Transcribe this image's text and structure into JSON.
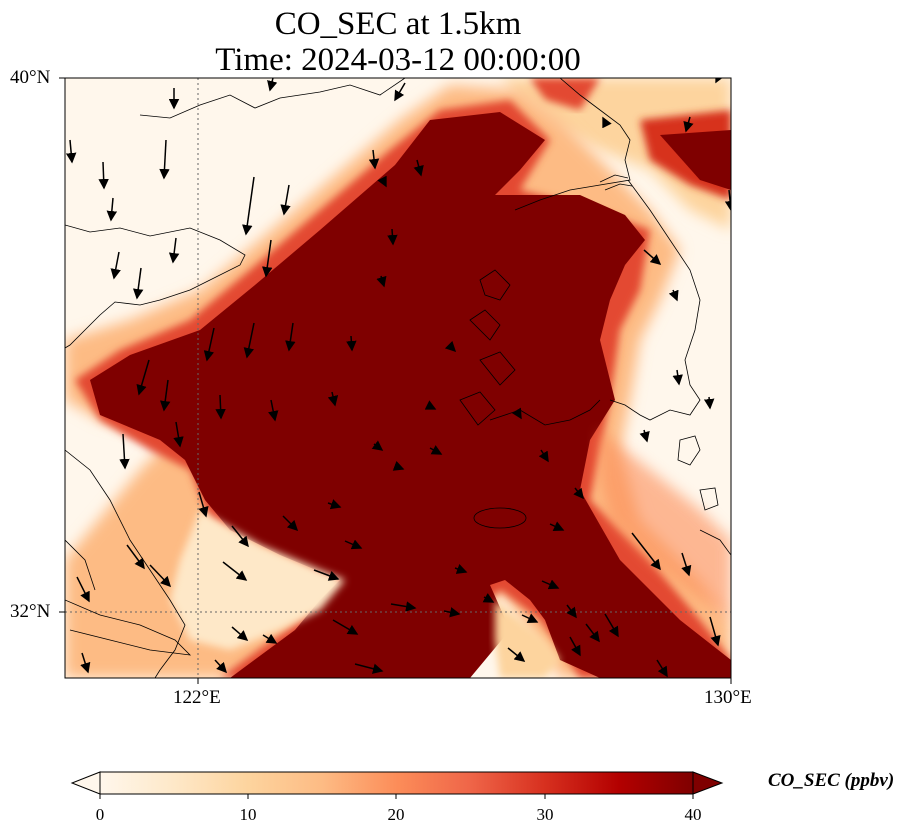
{
  "title": {
    "line1": "CO_SEC at 1.5km",
    "line2": "Time: 2024-03-12 00:00:00"
  },
  "map": {
    "extent": {
      "lon_min": 120,
      "lon_max": 130,
      "lat_min": 31,
      "lat_max": 40
    },
    "gridlines": {
      "lon": [
        122,
        130
      ],
      "lat": [
        32,
        40
      ],
      "style": "dotted"
    },
    "lon_tick_labels": [
      "122°E",
      "130°E"
    ],
    "lat_tick_labels": [
      "40°N",
      "32°N"
    ],
    "field": "CO_SEC",
    "colormap": "OrRd",
    "wind_vectors": "shown"
  },
  "colorbar": {
    "label": "CO_SEC (ppbv)",
    "min": 0,
    "max": 40,
    "ticks": [
      "0",
      "10",
      "20",
      "30",
      "40"
    ],
    "extend": "both",
    "colors": [
      "#fff7ec",
      "#fee8c8",
      "#fdd49e",
      "#fdbb84",
      "#fc8d59",
      "#ef6548",
      "#d7301f",
      "#b30000",
      "#7f0000"
    ]
  }
}
